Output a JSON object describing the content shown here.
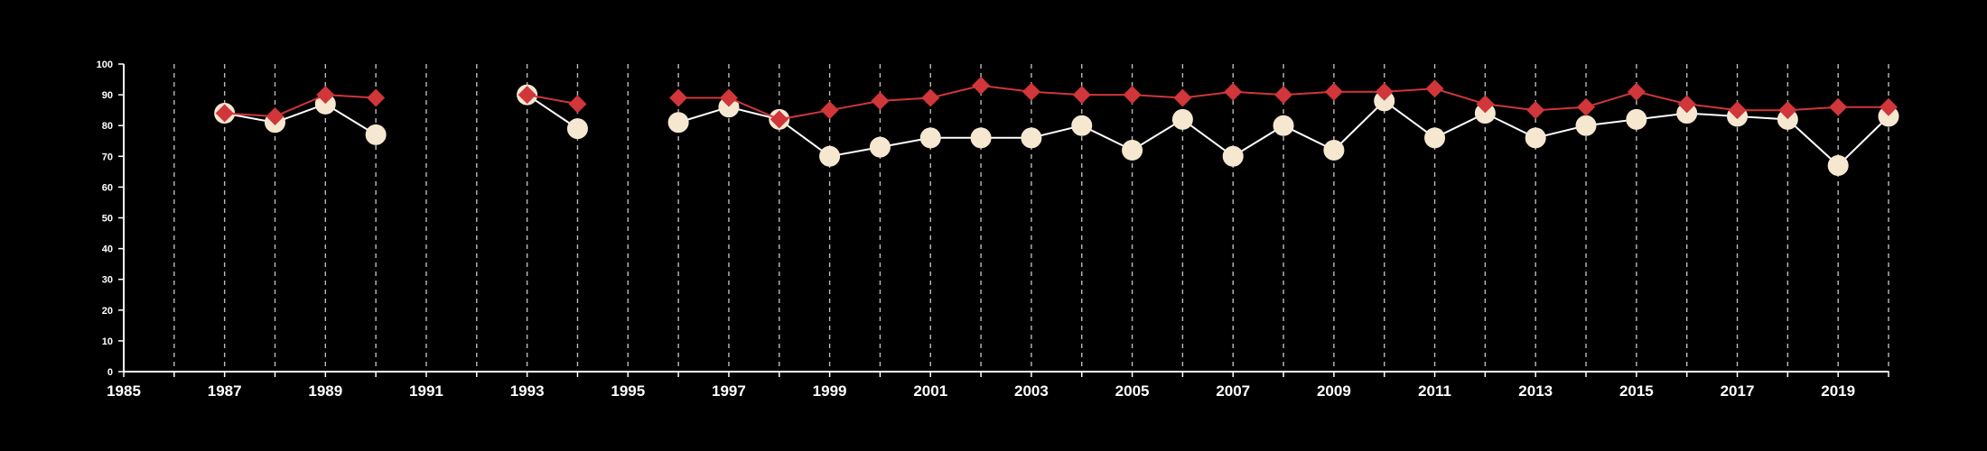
{
  "chart_data": {
    "type": "line",
    "title": "",
    "xlabel": "",
    "ylabel": "",
    "xlim": [
      1985,
      2020
    ],
    "ylim": [
      0,
      100
    ],
    "x_ticks": [
      1985,
      1987,
      1989,
      1991,
      1993,
      1995,
      1997,
      1999,
      2001,
      2003,
      2005,
      2007,
      2009,
      2011,
      2013,
      2015,
      2017,
      2019
    ],
    "y_ticks": [
      0,
      10,
      20,
      30,
      40,
      50,
      60,
      70,
      80,
      90,
      100
    ],
    "grid": "vertical dashed lines at every year",
    "background_color": "#000000",
    "axis_color": "#ffffff",
    "legend": null,
    "series": [
      {
        "marker": "circle",
        "color": "#f6e7d1",
        "line_color": "#ffffff",
        "points": [
          [
            1987,
            84
          ],
          [
            1988,
            81
          ],
          [
            1989,
            87
          ],
          [
            1990,
            77
          ],
          [
            1993,
            90
          ],
          [
            1994,
            79
          ],
          [
            1996,
            81
          ],
          [
            1997,
            86
          ],
          [
            1998,
            82
          ],
          [
            1999,
            70
          ],
          [
            2000,
            73
          ],
          [
            2001,
            76
          ],
          [
            2002,
            76
          ],
          [
            2003,
            76
          ],
          [
            2004,
            80
          ],
          [
            2005,
            72
          ],
          [
            2006,
            82
          ],
          [
            2007,
            70
          ],
          [
            2008,
            80
          ],
          [
            2009,
            72
          ],
          [
            2010,
            88
          ],
          [
            2011,
            76
          ],
          [
            2012,
            84
          ],
          [
            2013,
            76
          ],
          [
            2014,
            80
          ],
          [
            2015,
            82
          ],
          [
            2016,
            84
          ],
          [
            2017,
            83
          ],
          [
            2018,
            82
          ],
          [
            2019,
            67
          ],
          [
            2020,
            83
          ]
        ]
      },
      {
        "marker": "diamond",
        "color": "#d0363a",
        "line_color": "#d0363a",
        "points": [
          [
            1987,
            84
          ],
          [
            1988,
            83
          ],
          [
            1989,
            90
          ],
          [
            1990,
            89
          ],
          [
            1993,
            90
          ],
          [
            1994,
            87
          ],
          [
            1996,
            89
          ],
          [
            1997,
            89
          ],
          [
            1998,
            82
          ],
          [
            1999,
            85
          ],
          [
            2000,
            88
          ],
          [
            2001,
            89
          ],
          [
            2002,
            93
          ],
          [
            2003,
            91
          ],
          [
            2004,
            90
          ],
          [
            2005,
            90
          ],
          [
            2006,
            89
          ],
          [
            2007,
            91
          ],
          [
            2008,
            90
          ],
          [
            2009,
            91
          ],
          [
            2010,
            91
          ],
          [
            2011,
            92
          ],
          [
            2012,
            87
          ],
          [
            2013,
            85
          ],
          [
            2014,
            86
          ],
          [
            2015,
            91
          ],
          [
            2016,
            87
          ],
          [
            2017,
            85
          ],
          [
            2018,
            85
          ],
          [
            2019,
            86
          ],
          [
            2020,
            86
          ]
        ]
      }
    ]
  }
}
